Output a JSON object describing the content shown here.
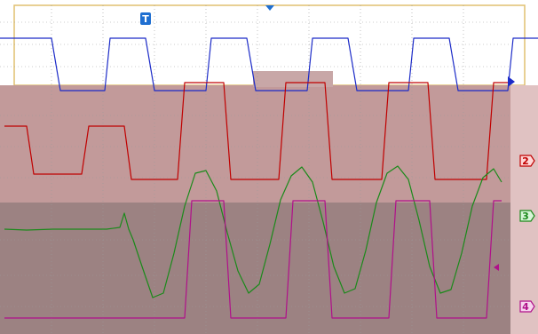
{
  "chart_data": {
    "type": "line",
    "title": "",
    "xlabel": "",
    "ylabel": "",
    "xlim": [
      0,
      606
    ],
    "grid": true,
    "trigger_marker": {
      "label": "T",
      "color": "#1f6fd1"
    },
    "channel_markers": [
      {
        "label": "2",
        "color": "#c00000"
      },
      {
        "label": "3",
        "color": "#1a8a1a"
      },
      {
        "label": "4",
        "color": "#b0108a"
      }
    ],
    "series": [
      {
        "color": "#1c2bc8",
        "kind": "square",
        "x": [
          0,
          20,
          58,
          68,
          118,
          124,
          164,
          174,
          232,
          238,
          278,
          288,
          346,
          352,
          392,
          402,
          460,
          466,
          506,
          516,
          572,
          578,
          606
        ],
        "y": [
          43,
          43,
          43,
          102,
          102,
          43,
          43,
          102,
          102,
          43,
          43,
          102,
          102,
          43,
          43,
          102,
          102,
          43,
          43,
          102,
          102,
          43,
          43
        ]
      },
      {
        "color": "#c00000",
        "kind": "square",
        "x": [
          5,
          30,
          38,
          92,
          100,
          140,
          148,
          200,
          208,
          252,
          260,
          314,
          322,
          366,
          374,
          430,
          438,
          482,
          490,
          548,
          556,
          575
        ],
        "y": [
          142,
          142,
          196,
          196,
          142,
          142,
          202,
          202,
          93,
          93,
          202,
          202,
          93,
          93,
          202,
          202,
          93,
          93,
          202,
          202,
          93,
          93
        ]
      },
      {
        "color": "#1a8a1a",
        "kind": "line",
        "x": [
          5,
          30,
          60,
          90,
          120,
          135,
          140,
          145,
          150,
          160,
          172,
          184,
          196,
          208,
          220,
          232,
          244,
          256,
          268,
          280,
          292,
          304,
          316,
          328,
          340,
          352,
          364,
          376,
          388,
          400,
          412,
          424,
          436,
          448,
          460,
          472,
          484,
          496,
          508,
          520,
          532,
          544,
          556,
          565
        ],
        "y": [
          258,
          259,
          258,
          258,
          258,
          256,
          240,
          258,
          270,
          300,
          335,
          330,
          285,
          232,
          195,
          192,
          215,
          262,
          305,
          330,
          320,
          275,
          225,
          198,
          188,
          205,
          250,
          300,
          330,
          325,
          282,
          228,
          195,
          187,
          202,
          248,
          300,
          330,
          326,
          285,
          232,
          200,
          190,
          205
        ]
      },
      {
        "color": "#b0108a",
        "kind": "square",
        "x": [
          5,
          208,
          216,
          252,
          260,
          322,
          330,
          366,
          374,
          438,
          446,
          484,
          492,
          548,
          556,
          565
        ],
        "y": [
          358,
          358,
          226,
          226,
          358,
          358,
          226,
          226,
          358,
          358,
          226,
          226,
          358,
          358,
          226,
          226
        ]
      }
    ]
  }
}
